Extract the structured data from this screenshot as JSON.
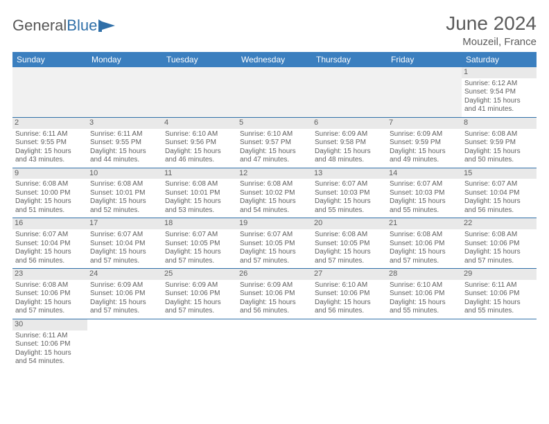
{
  "logo": {
    "text1": "General",
    "text2": "Blue"
  },
  "title": {
    "month_year": "June 2024",
    "location": "Mouzeil, France"
  },
  "colors": {
    "header_bg": "#3b7fbf",
    "header_text": "#ffffff",
    "daynum_bg": "#e9e9e9",
    "cell_text": "#5f5f5f",
    "border": "#2f6fa8",
    "blank_bg": "#f1f1f1",
    "title_text": "#5a5a5a"
  },
  "weekdays": [
    "Sunday",
    "Monday",
    "Tuesday",
    "Wednesday",
    "Thursday",
    "Friday",
    "Saturday"
  ],
  "weeks": [
    [
      null,
      null,
      null,
      null,
      null,
      null,
      {
        "n": "1",
        "sr": "Sunrise: 6:12 AM",
        "ss": "Sunset: 9:54 PM",
        "d1": "Daylight: 15 hours",
        "d2": "and 41 minutes."
      }
    ],
    [
      {
        "n": "2",
        "sr": "Sunrise: 6:11 AM",
        "ss": "Sunset: 9:55 PM",
        "d1": "Daylight: 15 hours",
        "d2": "and 43 minutes."
      },
      {
        "n": "3",
        "sr": "Sunrise: 6:11 AM",
        "ss": "Sunset: 9:55 PM",
        "d1": "Daylight: 15 hours",
        "d2": "and 44 minutes."
      },
      {
        "n": "4",
        "sr": "Sunrise: 6:10 AM",
        "ss": "Sunset: 9:56 PM",
        "d1": "Daylight: 15 hours",
        "d2": "and 46 minutes."
      },
      {
        "n": "5",
        "sr": "Sunrise: 6:10 AM",
        "ss": "Sunset: 9:57 PM",
        "d1": "Daylight: 15 hours",
        "d2": "and 47 minutes."
      },
      {
        "n": "6",
        "sr": "Sunrise: 6:09 AM",
        "ss": "Sunset: 9:58 PM",
        "d1": "Daylight: 15 hours",
        "d2": "and 48 minutes."
      },
      {
        "n": "7",
        "sr": "Sunrise: 6:09 AM",
        "ss": "Sunset: 9:59 PM",
        "d1": "Daylight: 15 hours",
        "d2": "and 49 minutes."
      },
      {
        "n": "8",
        "sr": "Sunrise: 6:08 AM",
        "ss": "Sunset: 9:59 PM",
        "d1": "Daylight: 15 hours",
        "d2": "and 50 minutes."
      }
    ],
    [
      {
        "n": "9",
        "sr": "Sunrise: 6:08 AM",
        "ss": "Sunset: 10:00 PM",
        "d1": "Daylight: 15 hours",
        "d2": "and 51 minutes."
      },
      {
        "n": "10",
        "sr": "Sunrise: 6:08 AM",
        "ss": "Sunset: 10:01 PM",
        "d1": "Daylight: 15 hours",
        "d2": "and 52 minutes."
      },
      {
        "n": "11",
        "sr": "Sunrise: 6:08 AM",
        "ss": "Sunset: 10:01 PM",
        "d1": "Daylight: 15 hours",
        "d2": "and 53 minutes."
      },
      {
        "n": "12",
        "sr": "Sunrise: 6:08 AM",
        "ss": "Sunset: 10:02 PM",
        "d1": "Daylight: 15 hours",
        "d2": "and 54 minutes."
      },
      {
        "n": "13",
        "sr": "Sunrise: 6:07 AM",
        "ss": "Sunset: 10:03 PM",
        "d1": "Daylight: 15 hours",
        "d2": "and 55 minutes."
      },
      {
        "n": "14",
        "sr": "Sunrise: 6:07 AM",
        "ss": "Sunset: 10:03 PM",
        "d1": "Daylight: 15 hours",
        "d2": "and 55 minutes."
      },
      {
        "n": "15",
        "sr": "Sunrise: 6:07 AM",
        "ss": "Sunset: 10:04 PM",
        "d1": "Daylight: 15 hours",
        "d2": "and 56 minutes."
      }
    ],
    [
      {
        "n": "16",
        "sr": "Sunrise: 6:07 AM",
        "ss": "Sunset: 10:04 PM",
        "d1": "Daylight: 15 hours",
        "d2": "and 56 minutes."
      },
      {
        "n": "17",
        "sr": "Sunrise: 6:07 AM",
        "ss": "Sunset: 10:04 PM",
        "d1": "Daylight: 15 hours",
        "d2": "and 57 minutes."
      },
      {
        "n": "18",
        "sr": "Sunrise: 6:07 AM",
        "ss": "Sunset: 10:05 PM",
        "d1": "Daylight: 15 hours",
        "d2": "and 57 minutes."
      },
      {
        "n": "19",
        "sr": "Sunrise: 6:07 AM",
        "ss": "Sunset: 10:05 PM",
        "d1": "Daylight: 15 hours",
        "d2": "and 57 minutes."
      },
      {
        "n": "20",
        "sr": "Sunrise: 6:08 AM",
        "ss": "Sunset: 10:05 PM",
        "d1": "Daylight: 15 hours",
        "d2": "and 57 minutes."
      },
      {
        "n": "21",
        "sr": "Sunrise: 6:08 AM",
        "ss": "Sunset: 10:06 PM",
        "d1": "Daylight: 15 hours",
        "d2": "and 57 minutes."
      },
      {
        "n": "22",
        "sr": "Sunrise: 6:08 AM",
        "ss": "Sunset: 10:06 PM",
        "d1": "Daylight: 15 hours",
        "d2": "and 57 minutes."
      }
    ],
    [
      {
        "n": "23",
        "sr": "Sunrise: 6:08 AM",
        "ss": "Sunset: 10:06 PM",
        "d1": "Daylight: 15 hours",
        "d2": "and 57 minutes."
      },
      {
        "n": "24",
        "sr": "Sunrise: 6:09 AM",
        "ss": "Sunset: 10:06 PM",
        "d1": "Daylight: 15 hours",
        "d2": "and 57 minutes."
      },
      {
        "n": "25",
        "sr": "Sunrise: 6:09 AM",
        "ss": "Sunset: 10:06 PM",
        "d1": "Daylight: 15 hours",
        "d2": "and 57 minutes."
      },
      {
        "n": "26",
        "sr": "Sunrise: 6:09 AM",
        "ss": "Sunset: 10:06 PM",
        "d1": "Daylight: 15 hours",
        "d2": "and 56 minutes."
      },
      {
        "n": "27",
        "sr": "Sunrise: 6:10 AM",
        "ss": "Sunset: 10:06 PM",
        "d1": "Daylight: 15 hours",
        "d2": "and 56 minutes."
      },
      {
        "n": "28",
        "sr": "Sunrise: 6:10 AM",
        "ss": "Sunset: 10:06 PM",
        "d1": "Daylight: 15 hours",
        "d2": "and 55 minutes."
      },
      {
        "n": "29",
        "sr": "Sunrise: 6:11 AM",
        "ss": "Sunset: 10:06 PM",
        "d1": "Daylight: 15 hours",
        "d2": "and 55 minutes."
      }
    ],
    [
      {
        "n": "30",
        "sr": "Sunrise: 6:11 AM",
        "ss": "Sunset: 10:06 PM",
        "d1": "Daylight: 15 hours",
        "d2": "and 54 minutes."
      },
      null,
      null,
      null,
      null,
      null,
      null
    ]
  ]
}
